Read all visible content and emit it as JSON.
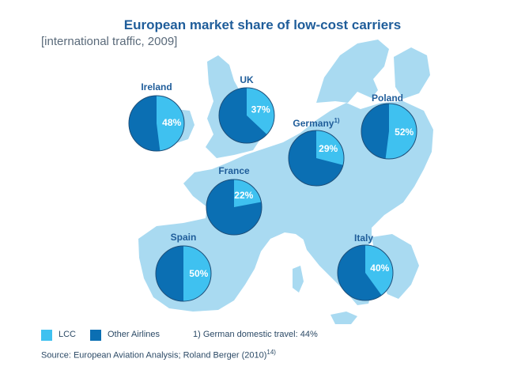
{
  "chart_data": {
    "type": "pie",
    "title": "European market share of low-cost carriers",
    "subtitle": "[international traffic, 2009]",
    "series_names": [
      "LCC",
      "Other Airlines"
    ],
    "countries": [
      {
        "name": "Ireland",
        "lcc_share": 48,
        "label": "48%"
      },
      {
        "name": "UK",
        "lcc_share": 37,
        "label": "37%"
      },
      {
        "name": "Germany",
        "footnote_mark": "1)",
        "lcc_share": 29,
        "label": "29%"
      },
      {
        "name": "Poland",
        "lcc_share": 52,
        "label": "52%"
      },
      {
        "name": "France",
        "lcc_share": 22,
        "label": "22%"
      },
      {
        "name": "Spain",
        "lcc_share": 50,
        "label": "50%"
      },
      {
        "name": "Italy",
        "lcc_share": 40,
        "label": "40%"
      }
    ],
    "legend": {
      "lcc": "LCC",
      "other": "Other Airlines",
      "footnote": "1) German domestic travel: 44%"
    },
    "colors": {
      "lcc": "#3fc1f0",
      "other": "#0b6fb3",
      "map": "#a9daf1",
      "title": "#1f5d9a",
      "pie_border": "#1d4f7a"
    }
  },
  "source": {
    "text": "Source: European Aviation Analysis; Roland Berger (2010)",
    "sup": "14)"
  }
}
